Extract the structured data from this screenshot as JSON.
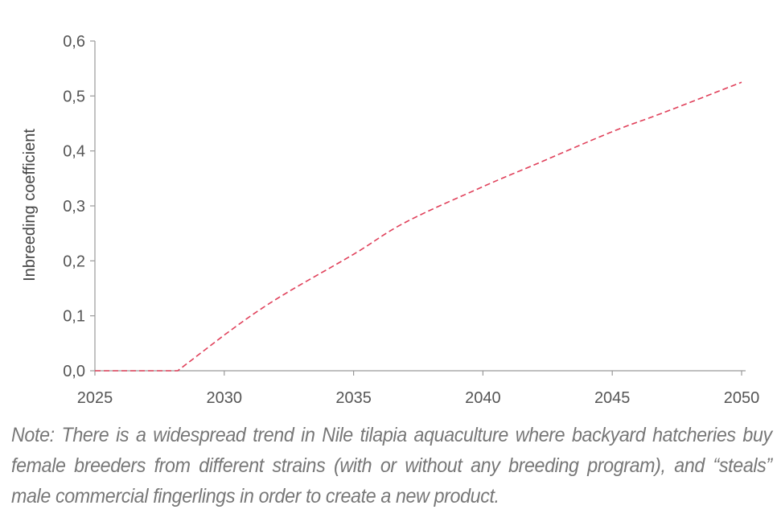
{
  "chart_data": {
    "type": "line",
    "title": "",
    "xlabel": "",
    "ylabel": "Inbreeding coefficient",
    "xlim": [
      2025,
      2050
    ],
    "ylim": [
      0,
      0.6
    ],
    "x_ticks": [
      "2025",
      "2030",
      "2035",
      "2040",
      "2045",
      "2050"
    ],
    "y_ticks": [
      "0,0",
      "0,1",
      "0,2",
      "0,3",
      "0,4",
      "0,5",
      "0,6"
    ],
    "series": [
      {
        "name": "Inbreeding coefficient",
        "color": "#e0405a",
        "style": "dashed",
        "x": [
          2025,
          2028.2,
          2030,
          2032,
          2035,
          2037,
          2040,
          2042,
          2045,
          2047,
          2050
        ],
        "values": [
          0.0,
          0.0,
          0.065,
          0.13,
          0.212,
          0.27,
          0.335,
          0.375,
          0.435,
          0.47,
          0.525
        ]
      }
    ]
  },
  "note": {
    "text": "Note: There is a widespread trend in Nile tilapia aquaculture where backyard hatcheries buy female breeders from different strains (with or without any breeding program), and “steals” male commercial fingerlings in order to create a new product."
  }
}
